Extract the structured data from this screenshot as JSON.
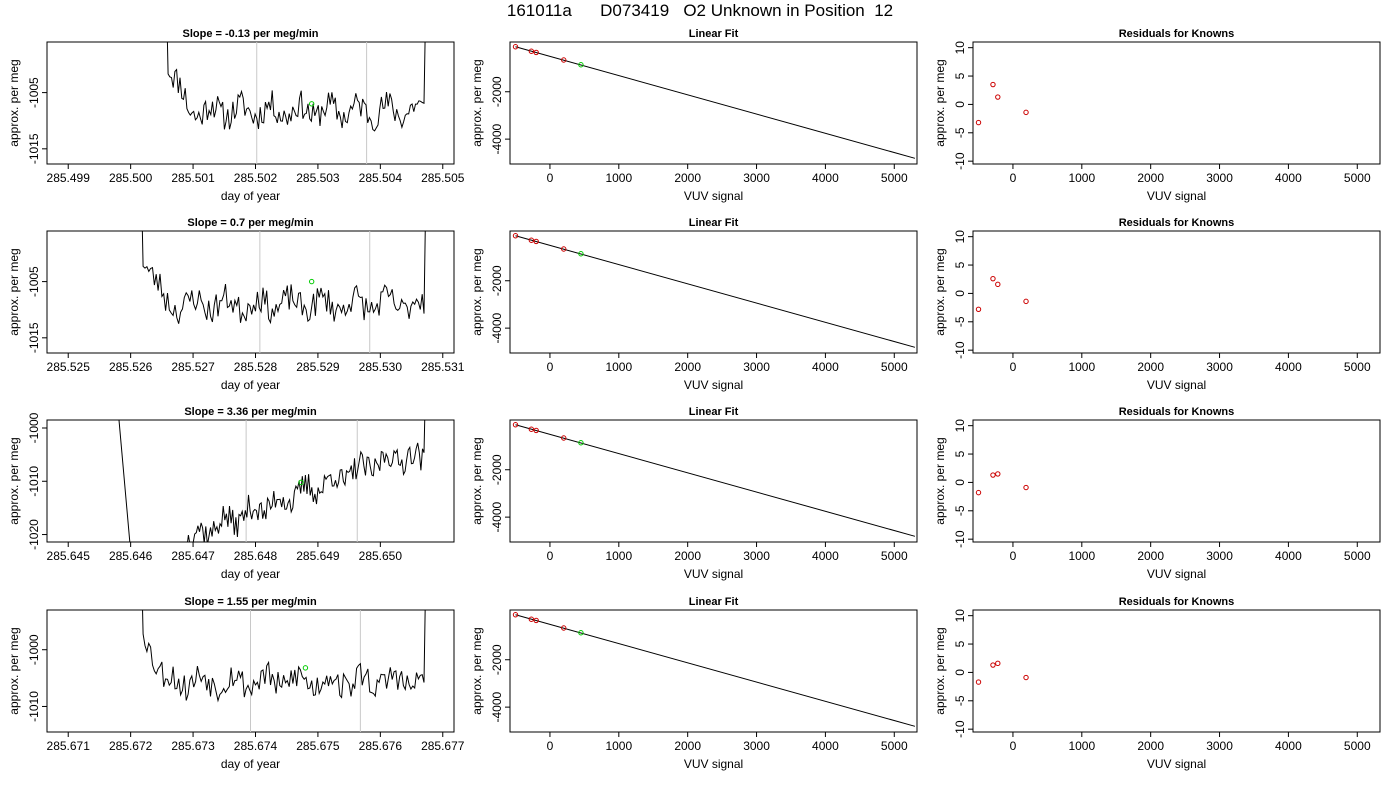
{
  "figure": {
    "title": "161011a      D073419   O2 Unknown in Position  12"
  },
  "chart_data": [
    {
      "type": "line",
      "title": "Slope =  -0.13  per meg/min",
      "xlabel": "day of year",
      "ylabel": "approx. per meg",
      "xlim": [
        285.49866,
        285.50518
      ],
      "ylim": [
        -1017.7,
        -996.0
      ],
      "x_ticks": [
        "285.499",
        "285.500",
        "285.501",
        "285.502",
        "285.503",
        "285.504",
        "285.505"
      ],
      "x_tick_values": [
        285.499,
        285.5,
        285.501,
        285.502,
        285.503,
        285.504,
        285.505
      ],
      "y_ticks": [
        "-1005",
        "-1015"
      ],
      "y_tick_values": [
        -1005,
        -1015
      ],
      "vlines": [
        285.50202,
        285.50378
      ],
      "trace_start": 285.5006,
      "trace_end": 285.5047,
      "trace_base": -1008.2,
      "seed": 11,
      "unknown_point": {
        "x": 285.5029,
        "y": -1007.0
      }
    },
    {
      "type": "scatter",
      "title": "Linear Fit",
      "xlabel": "VUV signal",
      "ylabel": "approx. per meg",
      "xlim": [
        -580,
        5330
      ],
      "ylim": [
        -5050,
        100
      ],
      "x_ticks": [
        "0",
        "1000",
        "2000",
        "3000",
        "4000",
        "5000"
      ],
      "x_tick_values": [
        0,
        1000,
        2000,
        3000,
        4000,
        5000
      ],
      "y_ticks": [
        "-2000",
        "-4000"
      ],
      "y_tick_values": [
        -2000,
        -4000
      ],
      "fit_line": {
        "x": [
          -500,
          5300
        ],
        "y": [
          -100,
          -4810
        ]
      },
      "knowns": [
        {
          "x": -500,
          "y": -100
        },
        {
          "x": -270,
          "y": -290
        },
        {
          "x": -200,
          "y": -340
        },
        {
          "x": 200,
          "y": -660
        }
      ],
      "unknown_point": {
        "x": 450,
        "y": -860
      }
    },
    {
      "type": "scatter",
      "title": "Residuals for Knowns",
      "xlabel": "VUV signal",
      "ylabel": "approx. per meg",
      "xlim": [
        -580,
        5330
      ],
      "ylim": [
        -10.5,
        11.0
      ],
      "x_ticks": [
        "0",
        "1000",
        "2000",
        "3000",
        "4000",
        "5000"
      ],
      "x_tick_values": [
        0,
        1000,
        2000,
        3000,
        4000,
        5000
      ],
      "y_ticks": [
        "-10",
        "-5",
        "0",
        "5",
        "10"
      ],
      "y_tick_values": [
        -10,
        -5,
        0,
        5,
        10
      ],
      "knowns": [
        {
          "x": -500,
          "y": -3.2
        },
        {
          "x": -290,
          "y": 3.5
        },
        {
          "x": -220,
          "y": 1.3
        },
        {
          "x": 190,
          "y": -1.4
        }
      ]
    },
    {
      "type": "line",
      "title": "Slope =  0.7  per meg/min",
      "xlabel": "day of year",
      "ylabel": "approx. per meg",
      "xlim": [
        285.52466,
        285.53118
      ],
      "ylim": [
        -1017.7,
        -996.0
      ],
      "x_ticks": [
        "285.525",
        "285.526",
        "285.527",
        "285.528",
        "285.529",
        "285.530",
        "285.531"
      ],
      "x_tick_values": [
        285.525,
        285.526,
        285.527,
        285.528,
        285.529,
        285.53,
        285.531
      ],
      "y_ticks": [
        "-1005",
        "-1015"
      ],
      "y_tick_values": [
        -1005,
        -1015
      ],
      "vlines": [
        285.52807,
        285.52983
      ],
      "trace_start": 285.5262,
      "trace_end": 285.5307,
      "trace_base": -1009.0,
      "seed": 23,
      "unknown_point": {
        "x": 285.5289,
        "y": -1005.0
      }
    },
    {
      "type": "scatter",
      "title": "Linear Fit",
      "xlabel": "VUV signal",
      "ylabel": "approx. per meg",
      "xlim": [
        -580,
        5330
      ],
      "ylim": [
        -5050,
        100
      ],
      "x_ticks": [
        "0",
        "1000",
        "2000",
        "3000",
        "4000",
        "5000"
      ],
      "x_tick_values": [
        0,
        1000,
        2000,
        3000,
        4000,
        5000
      ],
      "y_ticks": [
        "-2000",
        "-4000"
      ],
      "y_tick_values": [
        -2000,
        -4000
      ],
      "fit_line": {
        "x": [
          -500,
          5300
        ],
        "y": [
          -100,
          -4810
        ]
      },
      "knowns": [
        {
          "x": -500,
          "y": -100
        },
        {
          "x": -270,
          "y": -290
        },
        {
          "x": -200,
          "y": -340
        },
        {
          "x": 200,
          "y": -660
        }
      ],
      "unknown_point": {
        "x": 450,
        "y": -860
      }
    },
    {
      "type": "scatter",
      "title": "Residuals for Knowns",
      "xlabel": "VUV signal",
      "ylabel": "approx. per meg",
      "xlim": [
        -580,
        5330
      ],
      "ylim": [
        -10.5,
        11.0
      ],
      "x_ticks": [
        "0",
        "1000",
        "2000",
        "3000",
        "4000",
        "5000"
      ],
      "x_tick_values": [
        0,
        1000,
        2000,
        3000,
        4000,
        5000
      ],
      "y_ticks": [
        "-10",
        "-5",
        "0",
        "5",
        "10"
      ],
      "y_tick_values": [
        -10,
        -5,
        0,
        5,
        10
      ],
      "knowns": [
        {
          "x": -500,
          "y": -2.8
        },
        {
          "x": -290,
          "y": 2.6
        },
        {
          "x": -220,
          "y": 1.6
        },
        {
          "x": 190,
          "y": -1.4
        }
      ]
    },
    {
      "type": "line",
      "title": "Slope =  3.36  per meg/min",
      "xlabel": "day of year",
      "ylabel": "approx. per meg",
      "xlim": [
        285.64466,
        285.65118
      ],
      "ylim": [
        -1021.4,
        -998.5
      ],
      "x_ticks": [
        "285.645",
        "285.646",
        "285.647",
        "285.648",
        "285.649",
        "285.650"
      ],
      "x_tick_values": [
        285.645,
        285.646,
        285.647,
        285.648,
        285.649,
        285.65
      ],
      "y_ticks": [
        "-1000",
        "-1010",
        "-1020"
      ],
      "y_tick_values": [
        -1000,
        -1010,
        -1020
      ],
      "vlines": [
        285.64785,
        285.64963
      ],
      "trace_start": 285.6469,
      "trace_end": 285.6507,
      "trace_base": -1008.0,
      "trend_from": -1020.5,
      "trend_to": -1005.5,
      "seed": 37,
      "drop_in": {
        "x0": 285.6457,
        "x1": 285.6461
      },
      "unknown_point": {
        "x": 285.64873,
        "y": -1010.2
      }
    },
    {
      "type": "scatter",
      "title": "Linear Fit",
      "xlabel": "VUV signal",
      "ylabel": "approx. per meg",
      "xlim": [
        -580,
        5330
      ],
      "ylim": [
        -5050,
        100
      ],
      "x_ticks": [
        "0",
        "1000",
        "2000",
        "3000",
        "4000",
        "5000"
      ],
      "x_tick_values": [
        0,
        1000,
        2000,
        3000,
        4000,
        5000
      ],
      "y_ticks": [
        "-2000",
        "-4000"
      ],
      "y_tick_values": [
        -2000,
        -4000
      ],
      "fit_line": {
        "x": [
          -500,
          5300
        ],
        "y": [
          -100,
          -4810
        ]
      },
      "knowns": [
        {
          "x": -500,
          "y": -100
        },
        {
          "x": -270,
          "y": -290
        },
        {
          "x": -200,
          "y": -340
        },
        {
          "x": 200,
          "y": -660
        }
      ],
      "unknown_point": {
        "x": 450,
        "y": -860
      }
    },
    {
      "type": "scatter",
      "title": "Residuals for Knowns",
      "xlabel": "VUV signal",
      "ylabel": "approx. per meg",
      "xlim": [
        -580,
        5330
      ],
      "ylim": [
        -10.5,
        11.0
      ],
      "x_ticks": [
        "0",
        "1000",
        "2000",
        "3000",
        "4000",
        "5000"
      ],
      "x_tick_values": [
        0,
        1000,
        2000,
        3000,
        4000,
        5000
      ],
      "y_ticks": [
        "-10",
        "-5",
        "0",
        "5",
        "10"
      ],
      "y_tick_values": [
        -10,
        -5,
        0,
        5,
        10
      ],
      "knowns": [
        {
          "x": -500,
          "y": -1.8
        },
        {
          "x": -290,
          "y": 1.3
        },
        {
          "x": -220,
          "y": 1.5
        },
        {
          "x": 190,
          "y": -0.9
        }
      ]
    },
    {
      "type": "line",
      "title": "Slope =  1.55  per meg/min",
      "xlabel": "day of year",
      "ylabel": "approx. per meg",
      "xlim": [
        285.67066,
        285.67718
      ],
      "ylim": [
        -1014.5,
        -993.0
      ],
      "x_ticks": [
        "285.671",
        "285.672",
        "285.673",
        "285.674",
        "285.675",
        "285.676",
        "285.677"
      ],
      "x_tick_values": [
        285.671,
        285.672,
        285.673,
        285.674,
        285.675,
        285.676,
        285.677
      ],
      "y_ticks": [
        "-1000",
        "-1010"
      ],
      "y_tick_values": [
        -1000,
        -1010
      ],
      "vlines": [
        285.67392,
        285.67568
      ],
      "trace_start": 285.6722,
      "trace_end": 285.6767,
      "trace_base": -1005.5,
      "seed": 53,
      "unknown_point": {
        "x": 285.6748,
        "y": -1003.2
      }
    },
    {
      "type": "scatter",
      "title": "Linear Fit",
      "xlabel": "VUV signal",
      "ylabel": "approx. per meg",
      "xlim": [
        -580,
        5330
      ],
      "ylim": [
        -5050,
        100
      ],
      "x_ticks": [
        "0",
        "1000",
        "2000",
        "3000",
        "4000",
        "5000"
      ],
      "x_tick_values": [
        0,
        1000,
        2000,
        3000,
        4000,
        5000
      ],
      "y_ticks": [
        "-2000",
        "-4000"
      ],
      "y_tick_values": [
        -2000,
        -4000
      ],
      "fit_line": {
        "x": [
          -500,
          5300
        ],
        "y": [
          -100,
          -4810
        ]
      },
      "knowns": [
        {
          "x": -500,
          "y": -100
        },
        {
          "x": -270,
          "y": -290
        },
        {
          "x": -200,
          "y": -340
        },
        {
          "x": 200,
          "y": -660
        }
      ],
      "unknown_point": {
        "x": 450,
        "y": -860
      }
    },
    {
      "type": "scatter",
      "title": "Residuals for Knowns",
      "xlabel": "VUV signal",
      "ylabel": "approx. per meg",
      "xlim": [
        -580,
        5330
      ],
      "ylim": [
        -10.5,
        11.0
      ],
      "x_ticks": [
        "0",
        "1000",
        "2000",
        "3000",
        "4000",
        "5000"
      ],
      "x_tick_values": [
        0,
        1000,
        2000,
        3000,
        4000,
        5000
      ],
      "y_ticks": [
        "-10",
        "-5",
        "0",
        "5",
        "10"
      ],
      "y_tick_values": [
        -10,
        -5,
        0,
        5,
        10
      ],
      "knowns": [
        {
          "x": -500,
          "y": -1.7
        },
        {
          "x": -290,
          "y": 1.3
        },
        {
          "x": -220,
          "y": 1.6
        },
        {
          "x": 190,
          "y": -0.9
        }
      ]
    }
  ],
  "colors": {
    "trace": "#000000",
    "known_marker": "#cc0000",
    "unknown_marker": "#00cc00",
    "vline": "#c8c8c8",
    "axis": "#000000"
  }
}
